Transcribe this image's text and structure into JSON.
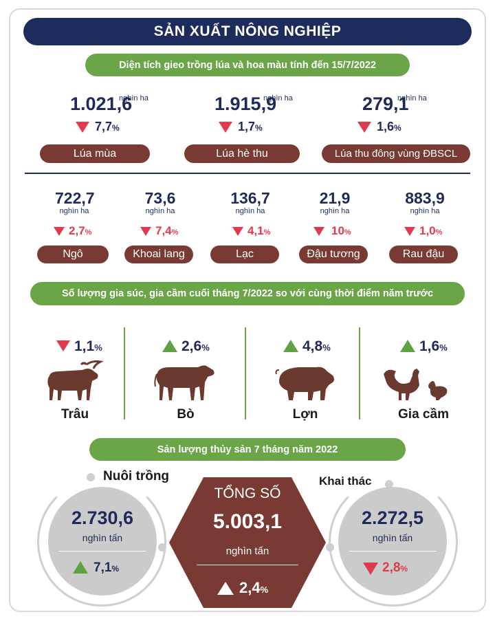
{
  "title": "SẢN XUẤT NÔNG NGHIỆP",
  "area_section": {
    "header": "Diện tích gieo trồng lúa và hoa màu tính đến 15/7/2022",
    "rice": [
      {
        "value": "1.021,6",
        "unit": "nghìn ha",
        "change": "7,7",
        "pct": "%",
        "direction": "down",
        "label": "Lúa mùa"
      },
      {
        "value": "1.915,9",
        "unit": "nghìn ha",
        "change": "1,7",
        "pct": "%",
        "direction": "down",
        "label": "Lúa hè thu"
      },
      {
        "value": "279,1",
        "unit": "nghìn ha",
        "change": "1,6",
        "pct": "%",
        "direction": "down",
        "label": "Lúa thu đông vùng ĐBSCL"
      }
    ],
    "crops": [
      {
        "value": "722,7",
        "unit": "nghìn ha",
        "change": "2,7",
        "pct": "%",
        "direction": "down",
        "label": "Ngô"
      },
      {
        "value": "73,6",
        "unit": "nghìn ha",
        "change": "7,4",
        "pct": "%",
        "direction": "down",
        "label": "Khoai lang"
      },
      {
        "value": "136,7",
        "unit": "nghìn ha",
        "change": "4,1",
        "pct": "%",
        "direction": "down",
        "label": "Lạc"
      },
      {
        "value": "21,9",
        "unit": "nghìn ha",
        "change": "10",
        "pct": "%",
        "direction": "down",
        "label": "Đậu tương"
      },
      {
        "value": "883,9",
        "unit": "nghìn ha",
        "change": "1,0",
        "pct": "%",
        "direction": "down",
        "label": "Rau đậu"
      }
    ]
  },
  "livestock_section": {
    "header": "Số lượng gia súc, gia cầm cuối tháng 7/2022 so với cùng thời điểm năm trước",
    "items": [
      {
        "change": "1,1",
        "pct": "%",
        "direction": "down",
        "label": "Trâu",
        "icon": "buffalo-icon"
      },
      {
        "change": "2,6",
        "pct": "%",
        "direction": "up",
        "label": "Bò",
        "icon": "cow-icon"
      },
      {
        "change": "4,8",
        "pct": "%",
        "direction": "up",
        "label": "Lợn",
        "icon": "pig-icon"
      },
      {
        "change": "1,6",
        "pct": "%",
        "direction": "up",
        "label": "Gia cầm",
        "icon": "poultry-icon"
      }
    ]
  },
  "fishery_section": {
    "header": "Sản lượng thủy sản 7 tháng năm 2022",
    "aquaculture": {
      "label": "Nuôi trồng",
      "value": "2.730,6",
      "unit": "nghìn tấn",
      "change": "7,1",
      "pct": "%",
      "direction": "up"
    },
    "total": {
      "label": "TỔNG SỐ",
      "value": "5.003,1",
      "unit": "nghìn tấn",
      "change": "2,4",
      "pct": "%",
      "direction": "up"
    },
    "capture": {
      "label": "Khai thác",
      "value": "2.272,5",
      "unit": "nghìn tấn",
      "change": "2,8",
      "pct": "%",
      "direction": "down"
    }
  },
  "colors": {
    "navy": "#1e2b5d",
    "green": "#6aa548",
    "brown": "#7a3a34",
    "red": "#e03a4e"
  }
}
